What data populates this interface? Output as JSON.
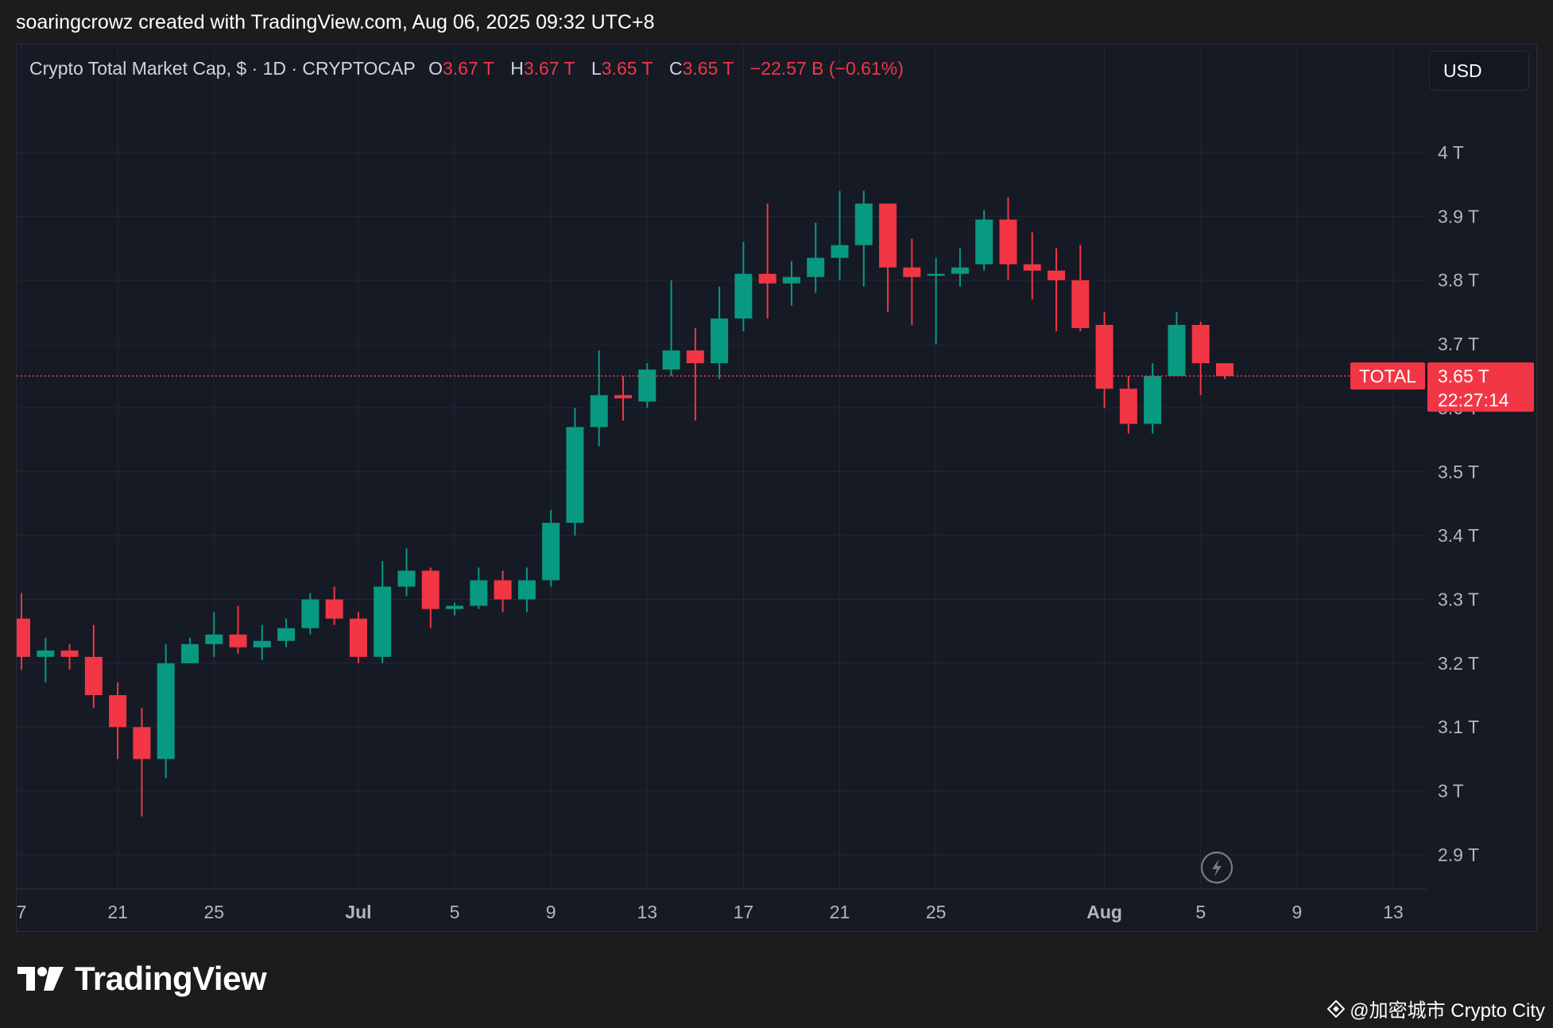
{
  "caption": "soaringcrowz created with TradingView.com, Aug 06, 2025 09:32 UTC+8",
  "legend": {
    "symbol": "Crypto Total Market Cap, $ · 1D · CRYPTOCAP",
    "o_label": "O",
    "o_value": "3.67 T",
    "h_label": "H",
    "h_value": "3.67 T",
    "l_label": "L",
    "l_value": "3.65 T",
    "c_label": "C",
    "c_value": "3.65 T",
    "change": "−22.57 B (−0.61%)"
  },
  "currency_button": "USD",
  "colors": {
    "up": "#089981",
    "down": "#f23645",
    "background": "#161a25",
    "grid": "#232734"
  },
  "chart_data": {
    "type": "candlestick",
    "title": "Crypto Total Market Cap, $ · 1D · CRYPTOCAP",
    "y_unit": "T",
    "ylim": [
      2.86,
      4.16
    ],
    "y_ticks": [
      2.9,
      3.0,
      3.1,
      3.2,
      3.3,
      3.4,
      3.5,
      3.6,
      3.7,
      3.8,
      3.9,
      4.0
    ],
    "y_tick_labels": [
      "2.9 T",
      "3 T",
      "3.1 T",
      "3.2 T",
      "3.3 T",
      "3.4 T",
      "3.5 T",
      "3.6 T",
      "3.7 T",
      "3.8 T",
      "3.9 T",
      "4 T"
    ],
    "x_start": "2025-06-17",
    "x_end": "2025-08-14",
    "x_ticks": [
      {
        "date": "2025-06-17",
        "label": "7",
        "bold": false
      },
      {
        "date": "2025-06-21",
        "label": "21",
        "bold": false
      },
      {
        "date": "2025-06-25",
        "label": "25",
        "bold": false
      },
      {
        "date": "2025-07-01",
        "label": "Jul",
        "bold": true
      },
      {
        "date": "2025-07-05",
        "label": "5",
        "bold": false
      },
      {
        "date": "2025-07-09",
        "label": "9",
        "bold": false
      },
      {
        "date": "2025-07-13",
        "label": "13",
        "bold": false
      },
      {
        "date": "2025-07-17",
        "label": "17",
        "bold": false
      },
      {
        "date": "2025-07-21",
        "label": "21",
        "bold": false
      },
      {
        "date": "2025-07-25",
        "label": "25",
        "bold": false
      },
      {
        "date": "2025-08-01",
        "label": "Aug",
        "bold": true
      },
      {
        "date": "2025-08-05",
        "label": "5",
        "bold": false
      },
      {
        "date": "2025-08-09",
        "label": "9",
        "bold": false
      },
      {
        "date": "2025-08-13",
        "label": "13",
        "bold": false
      }
    ],
    "candles": [
      {
        "date": "2025-06-17",
        "o": 3.27,
        "h": 3.31,
        "l": 3.19,
        "c": 3.21
      },
      {
        "date": "2025-06-18",
        "o": 3.21,
        "h": 3.24,
        "l": 3.17,
        "c": 3.22
      },
      {
        "date": "2025-06-19",
        "o": 3.22,
        "h": 3.23,
        "l": 3.19,
        "c": 3.21
      },
      {
        "date": "2025-06-20",
        "o": 3.21,
        "h": 3.26,
        "l": 3.13,
        "c": 3.15
      },
      {
        "date": "2025-06-21",
        "o": 3.15,
        "h": 3.17,
        "l": 3.05,
        "c": 3.1
      },
      {
        "date": "2025-06-22",
        "o": 3.1,
        "h": 3.13,
        "l": 2.96,
        "c": 3.05
      },
      {
        "date": "2025-06-23",
        "o": 3.05,
        "h": 3.23,
        "l": 3.02,
        "c": 3.2
      },
      {
        "date": "2025-06-24",
        "o": 3.2,
        "h": 3.24,
        "l": 3.2,
        "c": 3.23
      },
      {
        "date": "2025-06-25",
        "o": 3.23,
        "h": 3.28,
        "l": 3.21,
        "c": 3.245
      },
      {
        "date": "2025-06-26",
        "o": 3.245,
        "h": 3.29,
        "l": 3.215,
        "c": 3.225
      },
      {
        "date": "2025-06-27",
        "o": 3.225,
        "h": 3.26,
        "l": 3.205,
        "c": 3.235
      },
      {
        "date": "2025-06-28",
        "o": 3.235,
        "h": 3.27,
        "l": 3.225,
        "c": 3.255
      },
      {
        "date": "2025-06-29",
        "o": 3.255,
        "h": 3.31,
        "l": 3.245,
        "c": 3.3
      },
      {
        "date": "2025-06-30",
        "o": 3.3,
        "h": 3.32,
        "l": 3.26,
        "c": 3.27
      },
      {
        "date": "2025-07-01",
        "o": 3.27,
        "h": 3.28,
        "l": 3.2,
        "c": 3.21
      },
      {
        "date": "2025-07-02",
        "o": 3.21,
        "h": 3.36,
        "l": 3.2,
        "c": 3.32
      },
      {
        "date": "2025-07-03",
        "o": 3.32,
        "h": 3.38,
        "l": 3.305,
        "c": 3.345
      },
      {
        "date": "2025-07-04",
        "o": 3.345,
        "h": 3.35,
        "l": 3.255,
        "c": 3.285
      },
      {
        "date": "2025-07-05",
        "o": 3.285,
        "h": 3.295,
        "l": 3.275,
        "c": 3.29
      },
      {
        "date": "2025-07-06",
        "o": 3.29,
        "h": 3.35,
        "l": 3.285,
        "c": 3.33
      },
      {
        "date": "2025-07-07",
        "o": 3.33,
        "h": 3.345,
        "l": 3.28,
        "c": 3.3
      },
      {
        "date": "2025-07-08",
        "o": 3.3,
        "h": 3.35,
        "l": 3.28,
        "c": 3.33
      },
      {
        "date": "2025-07-09",
        "o": 3.33,
        "h": 3.44,
        "l": 3.32,
        "c": 3.42
      },
      {
        "date": "2025-07-10",
        "o": 3.42,
        "h": 3.6,
        "l": 3.4,
        "c": 3.57
      },
      {
        "date": "2025-07-11",
        "o": 3.57,
        "h": 3.69,
        "l": 3.54,
        "c": 3.62
      },
      {
        "date": "2025-07-12",
        "o": 3.62,
        "h": 3.65,
        "l": 3.58,
        "c": 3.615
      },
      {
        "date": "2025-07-13",
        "o": 3.61,
        "h": 3.67,
        "l": 3.6,
        "c": 3.66
      },
      {
        "date": "2025-07-14",
        "o": 3.66,
        "h": 3.8,
        "l": 3.65,
        "c": 3.69
      },
      {
        "date": "2025-07-15",
        "o": 3.69,
        "h": 3.725,
        "l": 3.58,
        "c": 3.67
      },
      {
        "date": "2025-07-16",
        "o": 3.67,
        "h": 3.79,
        "l": 3.645,
        "c": 3.74
      },
      {
        "date": "2025-07-17",
        "o": 3.74,
        "h": 3.86,
        "l": 3.72,
        "c": 3.81
      },
      {
        "date": "2025-07-18",
        "o": 3.81,
        "h": 3.92,
        "l": 3.74,
        "c": 3.795
      },
      {
        "date": "2025-07-19",
        "o": 3.795,
        "h": 3.83,
        "l": 3.76,
        "c": 3.805
      },
      {
        "date": "2025-07-20",
        "o": 3.805,
        "h": 3.89,
        "l": 3.78,
        "c": 3.835
      },
      {
        "date": "2025-07-21",
        "o": 3.835,
        "h": 3.94,
        "l": 3.8,
        "c": 3.855
      },
      {
        "date": "2025-07-22",
        "o": 3.855,
        "h": 3.94,
        "l": 3.79,
        "c": 3.92
      },
      {
        "date": "2025-07-23",
        "o": 3.92,
        "h": 3.92,
        "l": 3.75,
        "c": 3.82
      },
      {
        "date": "2025-07-24",
        "o": 3.82,
        "h": 3.865,
        "l": 3.73,
        "c": 3.805
      },
      {
        "date": "2025-07-25",
        "o": 3.81,
        "h": 3.835,
        "l": 3.7,
        "c": 3.81
      },
      {
        "date": "2025-07-26",
        "o": 3.81,
        "h": 3.85,
        "l": 3.79,
        "c": 3.82
      },
      {
        "date": "2025-07-27",
        "o": 3.825,
        "h": 3.91,
        "l": 3.815,
        "c": 3.895
      },
      {
        "date": "2025-07-28",
        "o": 3.895,
        "h": 3.93,
        "l": 3.8,
        "c": 3.825
      },
      {
        "date": "2025-07-29",
        "o": 3.825,
        "h": 3.875,
        "l": 3.77,
        "c": 3.815
      },
      {
        "date": "2025-07-30",
        "o": 3.815,
        "h": 3.85,
        "l": 3.72,
        "c": 3.8
      },
      {
        "date": "2025-07-31",
        "o": 3.8,
        "h": 3.855,
        "l": 3.72,
        "c": 3.725
      },
      {
        "date": "2025-08-01",
        "o": 3.73,
        "h": 3.75,
        "l": 3.6,
        "c": 3.63
      },
      {
        "date": "2025-08-02",
        "o": 3.63,
        "h": 3.65,
        "l": 3.56,
        "c": 3.575
      },
      {
        "date": "2025-08-03",
        "o": 3.575,
        "h": 3.67,
        "l": 3.56,
        "c": 3.65
      },
      {
        "date": "2025-08-04",
        "o": 3.65,
        "h": 3.75,
        "l": 3.65,
        "c": 3.73
      },
      {
        "date": "2025-08-05",
        "o": 3.73,
        "h": 3.735,
        "l": 3.62,
        "c": 3.67
      },
      {
        "date": "2025-08-06",
        "o": 3.67,
        "h": 3.67,
        "l": 3.645,
        "c": 3.65
      }
    ],
    "last_price": 3.65,
    "price_label": "3.65 T",
    "countdown": "22:27:14",
    "series_label": "TOTAL",
    "grid": true
  },
  "footer": {
    "brand": "TradingView",
    "watermark": "@加密城市 Crypto City"
  }
}
